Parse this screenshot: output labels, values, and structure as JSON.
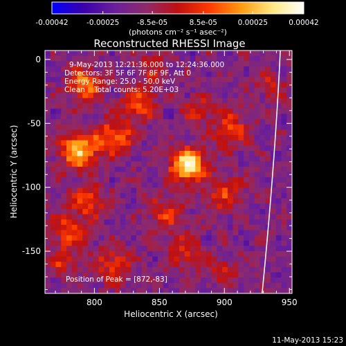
{
  "chart_data": {
    "type": "heatmap",
    "title": "Reconstructed RHESSI Image",
    "xlabel": "Heliocentric X (arcsec)",
    "ylabel": "Heliocentric Y (arcsec)",
    "xlim": [
      762,
      952
    ],
    "ylim": [
      -183,
      7
    ],
    "x_ticks": [
      800,
      850,
      900,
      950
    ],
    "y_ticks": [
      0,
      -50,
      -100,
      -150
    ],
    "colorbar": {
      "range": [
        -0.00042,
        0.00042
      ],
      "tick_values": [
        -0.00042,
        -0.00025,
        -8.5e-05,
        8.5e-05,
        0.00025,
        0.00042
      ],
      "tick_labels": [
        "-0.00042",
        "-0.00025",
        "-8.5e-05",
        "8.5e-05",
        "0.00025",
        "0.00042"
      ],
      "unit_label": "(photons cm⁻² s⁻¹ asec⁻²)",
      "colormap": [
        "#0000ff",
        "#3a00aa",
        "#6a1f9a",
        "#8f2a6a",
        "#c01010",
        "#ff3a00",
        "#ff9a10",
        "#ffe880",
        "#ffffff"
      ]
    },
    "annotations": {
      "time_range": "9-May-2013 12:21:36.000 to 12:24:36.000",
      "detectors": "Detectors: 3F 5F 6F 7F 8F 9F, Att 0",
      "energy_range": "Energy Range: 25.0 - 50.0 keV",
      "clean_info": "Clean    Total counts: 5.20E+03",
      "peak_position": "Position of Peak = [872,-83]"
    },
    "peak": {
      "x": 872,
      "y": -83
    },
    "sources": [
      {
        "x": 872,
        "y": -83,
        "sigma": 9,
        "amp": 1.0
      },
      {
        "x": 788,
        "y": -72,
        "sigma": 10,
        "amp": 0.8
      },
      {
        "x": 792,
        "y": -20,
        "sigma": 9,
        "amp": 0.65
      },
      {
        "x": 815,
        "y": -60,
        "sigma": 10,
        "amp": 0.55
      },
      {
        "x": 835,
        "y": -35,
        "sigma": 9,
        "amp": 0.5
      },
      {
        "x": 905,
        "y": -55,
        "sigma": 10,
        "amp": 0.45
      },
      {
        "x": 900,
        "y": -105,
        "sigma": 10,
        "amp": 0.4
      },
      {
        "x": 780,
        "y": -135,
        "sigma": 10,
        "amp": 0.45
      },
      {
        "x": 815,
        "y": -160,
        "sigma": 10,
        "amp": 0.4
      },
      {
        "x": 870,
        "y": -150,
        "sigma": 10,
        "amp": 0.35
      },
      {
        "x": 795,
        "y": -110,
        "sigma": 9,
        "amp": 0.5
      },
      {
        "x": 855,
        "y": -120,
        "sigma": 9,
        "amp": 0.4
      },
      {
        "x": 935,
        "y": -20,
        "sigma": 8,
        "amp": 0.3
      },
      {
        "x": 900,
        "y": -165,
        "sigma": 8,
        "amp": 0.3
      },
      {
        "x": 845,
        "y": -5,
        "sigma": 8,
        "amp": 0.3
      },
      {
        "x": 880,
        "y": -40,
        "sigma": 8,
        "amp": 0.35
      },
      {
        "x": 775,
        "y": -160,
        "sigma": 8,
        "amp": 0.3
      }
    ],
    "limb_arc": [
      [
        943,
        7
      ],
      [
        939,
        -80
      ],
      [
        929,
        -183
      ]
    ],
    "grid": false
  },
  "footer": {
    "timestamp": "11-May-2013 15:23"
  }
}
